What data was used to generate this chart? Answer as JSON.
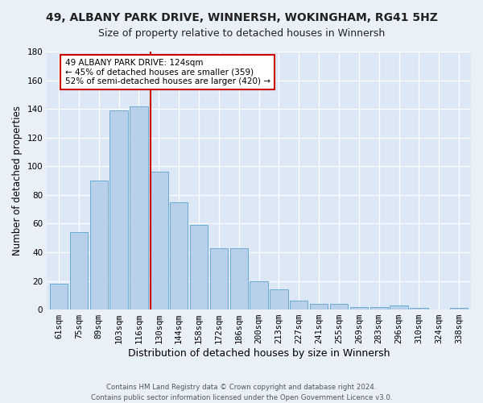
{
  "title": "49, ALBANY PARK DRIVE, WINNERSH, WOKINGHAM, RG41 5HZ",
  "subtitle": "Size of property relative to detached houses in Winnersh",
  "xlabel": "Distribution of detached houses by size in Winnersh",
  "ylabel": "Number of detached properties",
  "categories": [
    "61sqm",
    "75sqm",
    "89sqm",
    "103sqm",
    "116sqm",
    "130sqm",
    "144sqm",
    "158sqm",
    "172sqm",
    "186sqm",
    "200sqm",
    "213sqm",
    "227sqm",
    "241sqm",
    "255sqm",
    "269sqm",
    "283sqm",
    "296sqm",
    "310sqm",
    "324sqm",
    "338sqm"
  ],
  "values": [
    18,
    54,
    90,
    139,
    142,
    96,
    75,
    59,
    43,
    43,
    20,
    14,
    6,
    4,
    4,
    2,
    2,
    3,
    1,
    0,
    1
  ],
  "bar_color": "#b8d0ea",
  "bar_edge_color": "#6aaad4",
  "plot_bg_color": "#dce8f5",
  "fig_bg_color": "#eaf0f8",
  "vline_color": "#cc0000",
  "annotation_text": "49 ALBANY PARK DRIVE: 124sqm\n← 45% of detached houses are smaller (359)\n52% of semi-detached houses are larger (420) →",
  "annotation_box_color": "#ffffff",
  "annotation_box_edge": "#cc0000",
  "ylim": [
    0,
    180
  ],
  "yticks": [
    0,
    20,
    40,
    60,
    80,
    100,
    120,
    140,
    160,
    180
  ],
  "footer": "Contains HM Land Registry data © Crown copyright and database right 2024.\nContains public sector information licensed under the Open Government Licence v3.0.",
  "title_fontsize": 10,
  "tick_fontsize": 7.5,
  "xlabel_fontsize": 9,
  "ylabel_fontsize": 8.5,
  "ann_fontsize": 7.5
}
